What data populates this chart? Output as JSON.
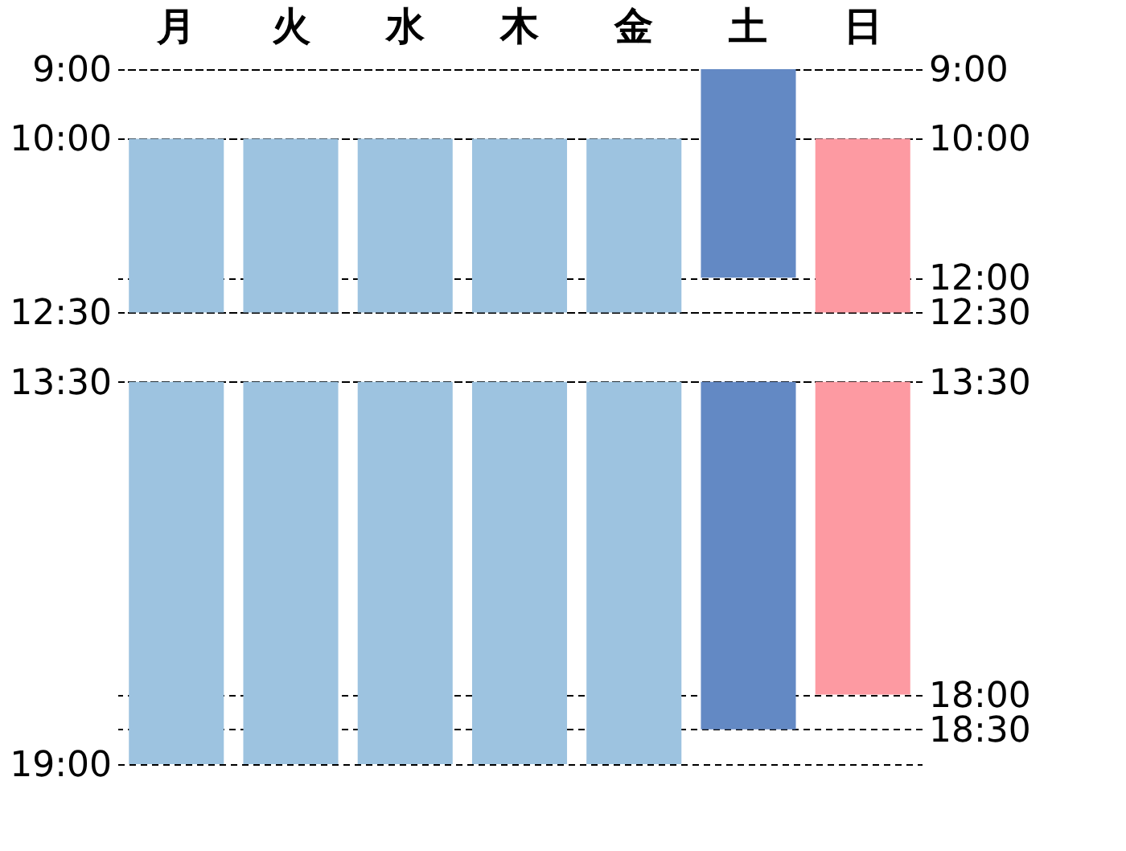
{
  "chart_data": {
    "type": "bar",
    "categories": [
      "月",
      "火",
      "水",
      "木",
      "金",
      "土",
      "日"
    ],
    "series": [
      {
        "base": [
          10,
          10,
          10,
          10,
          10,
          9,
          10
        ],
        "values": [
          2.5,
          2.5,
          2.5,
          2.5,
          2.5,
          3,
          2.5
        ],
        "colors": [
          "#9dc3e0",
          "#9dc3e0",
          "#9dc3e0",
          "#9dc3e0",
          "#9dc3e0",
          "#6389c4",
          "#fd9aa2"
        ]
      },
      {
        "base": [
          13.5,
          13.5,
          13.5,
          13.5,
          13.5,
          13.5,
          13.5
        ],
        "values": [
          5.5,
          5.5,
          5.5,
          5.5,
          5.5,
          5,
          4.5
        ],
        "colors": [
          "#9dc3e0",
          "#9dc3e0",
          "#9dc3e0",
          "#9dc3e0",
          "#9dc3e0",
          "#6389c4",
          "#fd9aa2"
        ]
      }
    ],
    "ylim": [
      19,
      9
    ],
    "yticks": [
      {
        "value": 9,
        "label": "9:00"
      },
      {
        "value": 10,
        "label": "10:00"
      },
      {
        "value": 12.5,
        "label": "12:30"
      },
      {
        "value": 13.5,
        "label": "13:30"
      },
      {
        "value": 19,
        "label": "19:00"
      }
    ],
    "y2lim": [
      19,
      9
    ],
    "y2ticks": [
      {
        "value": 9,
        "label": "9:00"
      },
      {
        "value": 10,
        "label": "10:00"
      },
      {
        "value": 12,
        "label": "12:00"
      },
      {
        "value": 12.5,
        "label": "12:30"
      },
      {
        "value": 13.5,
        "label": "13:30"
      },
      {
        "value": 18,
        "label": "18:00"
      },
      {
        "value": 18.5,
        "label": "18:30"
      }
    ],
    "grid": "y",
    "line_style": "dashed"
  }
}
